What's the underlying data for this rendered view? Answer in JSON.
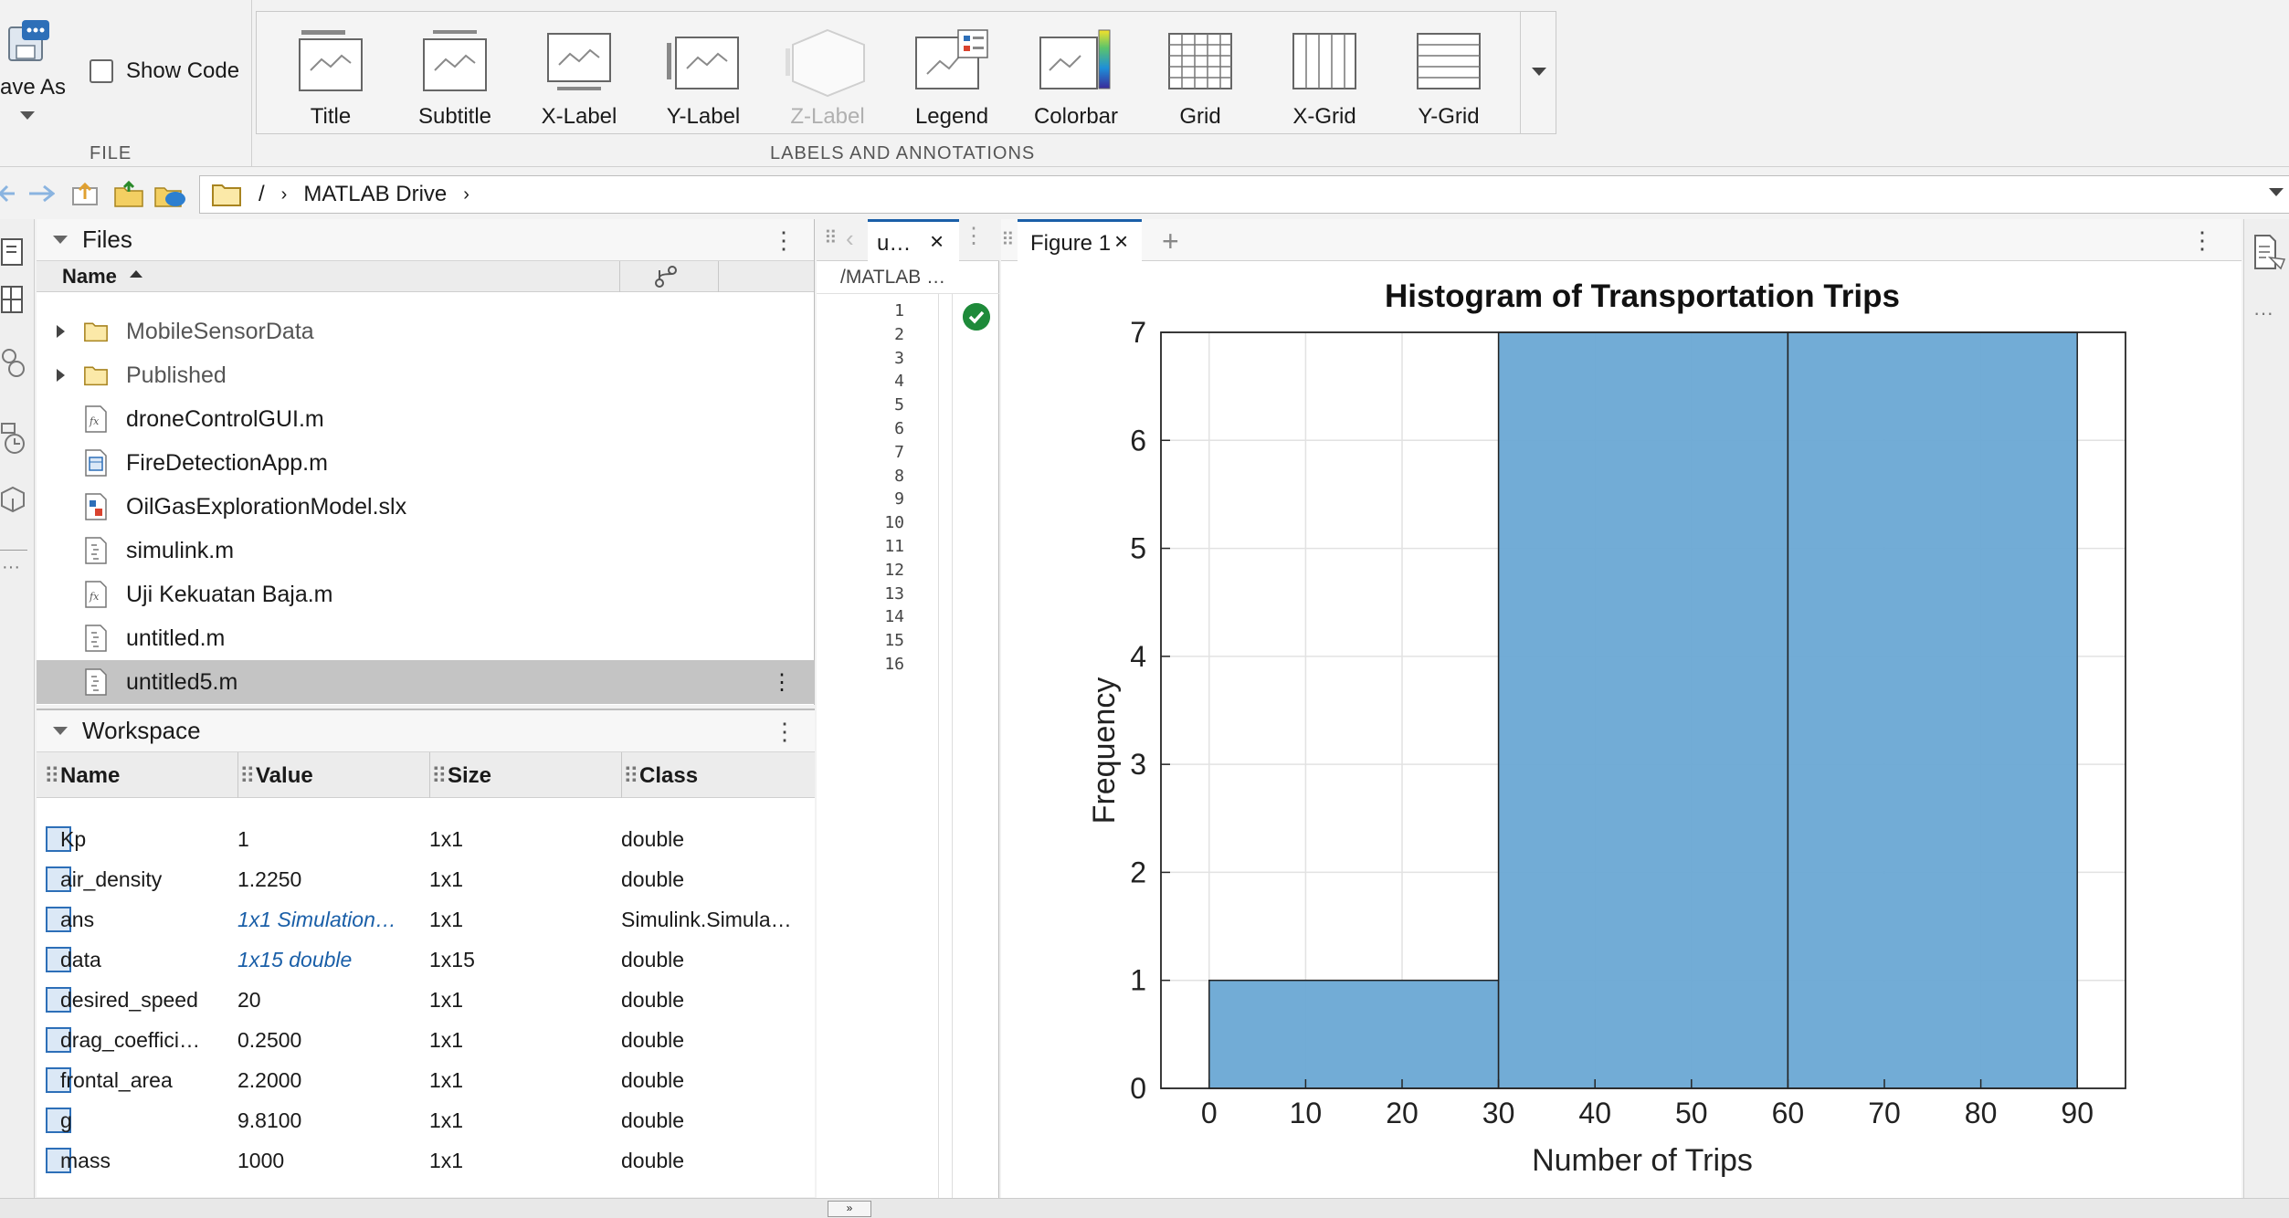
{
  "toolstrip": {
    "file": {
      "save_as": "ave As",
      "show_code": "Show Code",
      "section": "FILE"
    },
    "labels_section": "LABELS AND ANNOTATIONS",
    "buttons": [
      "Title",
      "Subtitle",
      "X-Label",
      "Y-Label",
      "Z-Label",
      "Legend",
      "Colorbar",
      "Grid",
      "X-Grid",
      "Y-Grid"
    ]
  },
  "address": {
    "root": "/",
    "crumb": "MATLAB Drive"
  },
  "files": {
    "title": "Files",
    "col_name": "Name",
    "items": [
      {
        "name": "MobileSensorData",
        "kind": "folder"
      },
      {
        "name": "Published",
        "kind": "folder"
      },
      {
        "name": "droneControlGUI.m",
        "kind": "function"
      },
      {
        "name": "FireDetectionApp.m",
        "kind": "app"
      },
      {
        "name": "OilGasExplorationModel.slx",
        "kind": "model"
      },
      {
        "name": "simulink.m",
        "kind": "script"
      },
      {
        "name": "Uji Kekuatan Baja.m",
        "kind": "function"
      },
      {
        "name": "untitled.m",
        "kind": "script"
      },
      {
        "name": "untitled5.m",
        "kind": "script"
      }
    ]
  },
  "workspace": {
    "title": "Workspace",
    "cols": [
      "Name",
      "Value",
      "Size",
      "Class"
    ],
    "rows": [
      {
        "name": "Kp",
        "value": "1",
        "size": "1x1",
        "class": "double",
        "italic": false
      },
      {
        "name": "air_density",
        "value": "1.2250",
        "size": "1x1",
        "class": "double",
        "italic": false
      },
      {
        "name": "ans",
        "value": "1x1 Simulation…",
        "size": "1x1",
        "class": "Simulink.Simula…",
        "italic": true
      },
      {
        "name": "data",
        "value": "1x15 double",
        "size": "1x15",
        "class": "double",
        "italic": true
      },
      {
        "name": "desired_speed",
        "value": "20",
        "size": "1x1",
        "class": "double",
        "italic": false
      },
      {
        "name": "drag_coeffici…",
        "value": "0.2500",
        "size": "1x1",
        "class": "double",
        "italic": false
      },
      {
        "name": "frontal_area",
        "value": "2.2000",
        "size": "1x1",
        "class": "double",
        "italic": false
      },
      {
        "name": "g",
        "value": "9.8100",
        "size": "1x1",
        "class": "double",
        "italic": false
      },
      {
        "name": "mass",
        "value": "1000",
        "size": "1x1",
        "class": "double",
        "italic": false
      }
    ]
  },
  "editor": {
    "tab": "u…",
    "path": "/MATLAB …",
    "lines": [
      "1",
      "2",
      "3",
      "4",
      "5",
      "6",
      "7",
      "8",
      "9",
      "10",
      "11",
      "12",
      "13",
      "14",
      "15",
      "16"
    ]
  },
  "figure": {
    "tab": "Figure 1"
  },
  "chart_data": {
    "type": "bar",
    "title": "Histogram of Transportation Trips",
    "xlabel": "Number of Trips",
    "ylabel": "Frequency",
    "bins": [
      [
        0,
        30
      ],
      [
        30,
        60
      ],
      [
        60,
        90
      ]
    ],
    "values": [
      1,
      7,
      7
    ],
    "xlim": [
      -5,
      95
    ],
    "ylim": [
      0,
      7
    ],
    "xticks": [
      "0",
      "10",
      "20",
      "30",
      "40",
      "50",
      "60",
      "70",
      "80",
      "90"
    ],
    "yticks": [
      "0",
      "1",
      "2",
      "3",
      "4",
      "5",
      "6",
      "7"
    ],
    "grid": true,
    "bar_color": "#6aa8d4"
  }
}
